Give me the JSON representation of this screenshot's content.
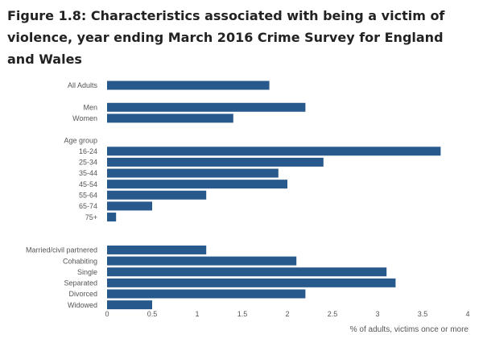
{
  "title": "Figure 1.8: Characteristics associated with being a victim of violence, year ending March 2016 Crime Survey for England and Wales",
  "chart_data": {
    "type": "bar",
    "orientation": "horizontal",
    "rows": [
      {
        "label": "All Adults",
        "value": 1.8
      },
      {
        "label": "",
        "value": null
      },
      {
        "label": "Men",
        "value": 2.2
      },
      {
        "label": "Women",
        "value": 1.4
      },
      {
        "label": "",
        "value": null
      },
      {
        "label": "Age group",
        "value": null
      },
      {
        "label": "16-24",
        "value": 3.7
      },
      {
        "label": "25-34",
        "value": 2.4
      },
      {
        "label": "35-44",
        "value": 1.9
      },
      {
        "label": "45-54",
        "value": 2.0
      },
      {
        "label": "55-64",
        "value": 1.1
      },
      {
        "label": "65-74",
        "value": 0.5
      },
      {
        "label": "75+",
        "value": 0.1
      },
      {
        "label": "",
        "value": null
      },
      {
        "label": "",
        "value": null
      },
      {
        "label": "Married/civil partnered",
        "value": 1.1
      },
      {
        "label": "Cohabiting",
        "value": 2.1
      },
      {
        "label": "Single",
        "value": 3.1
      },
      {
        "label": "Separated",
        "value": 3.2
      },
      {
        "label": "Divorced",
        "value": 2.2
      },
      {
        "label": "Widowed",
        "value": 0.5
      }
    ],
    "xticks": [
      "0",
      "0.5",
      "1",
      "1.5",
      "2",
      "2.5",
      "3",
      "3.5",
      "4"
    ],
    "xlim": [
      0,
      4
    ],
    "xlabel": "% of adults, victims once or more",
    "grid": false,
    "bar_color": "#27598c"
  }
}
